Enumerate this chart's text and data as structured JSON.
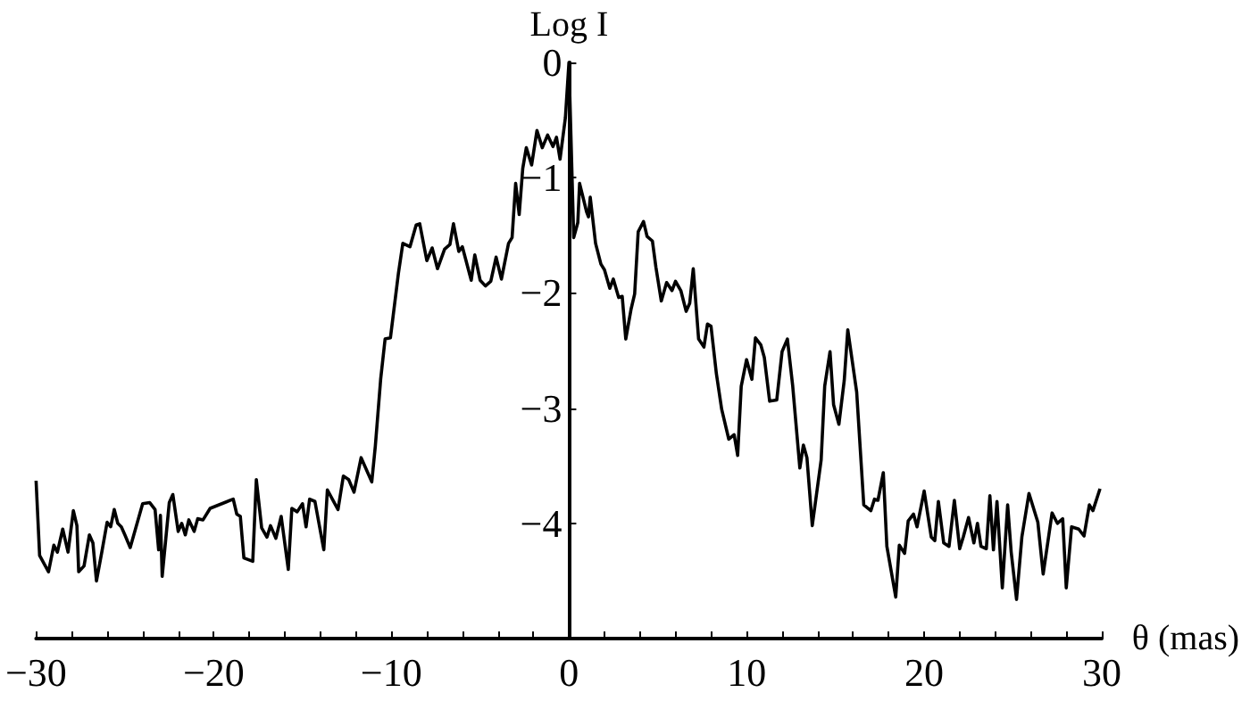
{
  "chart_data": {
    "type": "line",
    "xlabel": "θ (mas)",
    "ylabel": "Log I",
    "xlim": [
      -30,
      30
    ],
    "ylim": [
      -5,
      0
    ],
    "xticks": [
      {
        "value": -30,
        "label": "−30"
      },
      {
        "value": -28,
        "label": null
      },
      {
        "value": -26,
        "label": null
      },
      {
        "value": -24,
        "label": null
      },
      {
        "value": -22,
        "label": null
      },
      {
        "value": -20,
        "label": "−20"
      },
      {
        "value": -18,
        "label": null
      },
      {
        "value": -16,
        "label": null
      },
      {
        "value": -14,
        "label": null
      },
      {
        "value": -12,
        "label": null
      },
      {
        "value": -10,
        "label": "−10"
      },
      {
        "value": -8,
        "label": null
      },
      {
        "value": -6,
        "label": null
      },
      {
        "value": -4,
        "label": null
      },
      {
        "value": -2,
        "label": null
      },
      {
        "value": 0,
        "label": "0"
      },
      {
        "value": 2,
        "label": null
      },
      {
        "value": 4,
        "label": null
      },
      {
        "value": 6,
        "label": null
      },
      {
        "value": 8,
        "label": null
      },
      {
        "value": 10,
        "label": "10"
      },
      {
        "value": 12,
        "label": null
      },
      {
        "value": 14,
        "label": null
      },
      {
        "value": 16,
        "label": null
      },
      {
        "value": 18,
        "label": null
      },
      {
        "value": 20,
        "label": "20"
      },
      {
        "value": 22,
        "label": null
      },
      {
        "value": 24,
        "label": null
      },
      {
        "value": 26,
        "label": null
      },
      {
        "value": 28,
        "label": null
      },
      {
        "value": 30,
        "label": "30"
      }
    ],
    "yticks": [
      {
        "value": -4,
        "label": "−4"
      },
      {
        "value": -3,
        "label": "−3"
      },
      {
        "value": -2,
        "label": "−2"
      },
      {
        "value": -1,
        "label": "−1"
      },
      0
    ],
    "grid": false,
    "marker": "none",
    "line_style": "solid",
    "series": [
      {
        "color": "#000000",
        "x": [
          -30,
          -29.8,
          -29.3,
          -29.0,
          -28.8,
          -28.5,
          -28.2,
          -27.9,
          -27.7,
          -27.6,
          -27.3,
          -27.0,
          -26.8,
          -26.6,
          -26.3,
          -26.0,
          -25.8,
          -25.6,
          -25.4,
          -25.2,
          -25.0,
          -24.7,
          -24.0,
          -23.6,
          -23.3,
          -23.1,
          -23.0,
          -22.9,
          -22.5,
          -22.3,
          -22.0,
          -21.8,
          -21.6,
          -21.4,
          -21.1,
          -20.9,
          -20.6,
          -20.2,
          -18.9,
          -18.7,
          -18.5,
          -18.3,
          -17.8,
          -17.6,
          -17.3,
          -17.0,
          -16.8,
          -16.5,
          -16.2,
          -15.8,
          -15.6,
          -15.3,
          -15.0,
          -14.8,
          -14.6,
          -14.3,
          -13.8,
          -13.6,
          -13.0,
          -12.7,
          -12.4,
          -12.1,
          -11.7,
          -11.1,
          -10.9,
          -10.6,
          -10.35,
          -10.05,
          -9.6,
          -9.35,
          -8.95,
          -8.6,
          -8.4,
          -8.0,
          -7.7,
          -7.4,
          -7.0,
          -6.7,
          -6.5,
          -6.2,
          -6.0,
          -5.5,
          -5.3,
          -5.0,
          -4.7,
          -4.4,
          -4.1,
          -3.8,
          -3.4,
          -3.2,
          -3.0,
          -2.8,
          -2.6,
          -2.4,
          -2.1,
          -1.8,
          -1.5,
          -1.2,
          -0.9,
          -0.7,
          -0.5,
          -0.2,
          0,
          0.27,
          0.5,
          0.6,
          1.0,
          1.1,
          1.2,
          1.5,
          1.8,
          2.0,
          2.3,
          2.5,
          2.8,
          3.0,
          3.2,
          3.5,
          3.7,
          3.9,
          4.2,
          4.4,
          4.7,
          4.9,
          5.2,
          5.5,
          5.8,
          6.0,
          6.3,
          6.6,
          6.8,
          7.0,
          7.3,
          7.6,
          7.8,
          8.0,
          8.3,
          8.6,
          9.0,
          9.3,
          9.5,
          9.7,
          10.0,
          10.3,
          10.5,
          10.8,
          11.0,
          11.3,
          11.7,
          12.0,
          12.3,
          12.6,
          13.0,
          13.2,
          13.4,
          13.7,
          14.2,
          14.4,
          14.7,
          14.9,
          15.2,
          15.5,
          15.7,
          16.2,
          16.6,
          17.0,
          17.2,
          17.4,
          17.7,
          17.9,
          18.4,
          18.6,
          18.9,
          19.1,
          19.4,
          19.6,
          20.0,
          20.4,
          20.6,
          20.8,
          21.1,
          21.4,
          21.7,
          22.0,
          22.2,
          22.5,
          22.8,
          23.0,
          23.2,
          23.5,
          23.7,
          23.9,
          24.1,
          24.4,
          24.7,
          24.9,
          25.2,
          25.5,
          25.9,
          26.4,
          26.7,
          27.2,
          27.5,
          27.8,
          28.0,
          28.3,
          28.7,
          29.0,
          29.3,
          29.5,
          29.9
        ],
        "values": [
          -3.63,
          -4.28,
          -4.42,
          -4.19,
          -4.25,
          -4.05,
          -4.25,
          -3.89,
          -4.02,
          -4.42,
          -4.37,
          -4.1,
          -4.17,
          -4.5,
          -4.25,
          -3.99,
          -4.03,
          -3.88,
          -4.0,
          -4.03,
          -4.1,
          -4.21,
          -3.83,
          -3.82,
          -3.88,
          -4.23,
          -3.93,
          -4.46,
          -3.82,
          -3.75,
          -4.07,
          -4.0,
          -4.1,
          -3.97,
          -4.07,
          -3.96,
          -3.97,
          -3.87,
          -3.79,
          -3.92,
          -3.94,
          -4.3,
          -4.33,
          -3.62,
          -4.04,
          -4.12,
          -4.02,
          -4.13,
          -3.94,
          -4.4,
          -3.87,
          -3.9,
          -3.83,
          -4.03,
          -3.79,
          -3.81,
          -4.23,
          -3.71,
          -3.88,
          -3.59,
          -3.62,
          -3.73,
          -3.43,
          -3.64,
          -3.33,
          -2.75,
          -2.4,
          -2.39,
          -1.83,
          -1.57,
          -1.6,
          -1.41,
          -1.4,
          -1.72,
          -1.61,
          -1.79,
          -1.62,
          -1.58,
          -1.4,
          -1.64,
          -1.6,
          -1.89,
          -1.67,
          -1.89,
          -1.94,
          -1.9,
          -1.69,
          -1.88,
          -1.57,
          -1.52,
          -1.05,
          -1.32,
          -0.92,
          -0.74,
          -0.89,
          -0.59,
          -0.74,
          -0.63,
          -0.73,
          -0.65,
          -0.84,
          -0.48,
          0.0,
          -1.52,
          -1.39,
          -1.05,
          -1.3,
          -1.34,
          -1.17,
          -1.57,
          -1.75,
          -1.8,
          -1.96,
          -1.88,
          -2.04,
          -2.03,
          -2.4,
          -2.14,
          -2.01,
          -1.47,
          -1.38,
          -1.51,
          -1.55,
          -1.78,
          -2.07,
          -1.91,
          -1.98,
          -1.9,
          -1.98,
          -2.16,
          -2.09,
          -1.79,
          -2.4,
          -2.47,
          -2.27,
          -2.29,
          -2.7,
          -3.01,
          -3.27,
          -3.23,
          -3.41,
          -2.81,
          -2.58,
          -2.75,
          -2.39,
          -2.45,
          -2.56,
          -2.94,
          -2.93,
          -2.51,
          -2.4,
          -2.81,
          -3.52,
          -3.32,
          -3.43,
          -4.02,
          -3.45,
          -2.81,
          -2.51,
          -2.97,
          -3.14,
          -2.76,
          -2.32,
          -2.86,
          -3.84,
          -3.89,
          -3.79,
          -3.8,
          -3.56,
          -4.2,
          -4.64,
          -4.19,
          -4.26,
          -3.98,
          -3.92,
          -4.03,
          -3.72,
          -4.12,
          -4.15,
          -3.81,
          -4.17,
          -4.2,
          -3.8,
          -4.22,
          -4.12,
          -3.95,
          -4.17,
          -4.0,
          -4.2,
          -4.22,
          -3.76,
          -4.23,
          -3.81,
          -4.56,
          -3.84,
          -4.25,
          -4.66,
          -4.12,
          -3.74,
          -3.99,
          -4.44,
          -3.91,
          -4.0,
          -3.96,
          -4.56,
          -4.03,
          -4.05,
          -4.11,
          -3.84,
          -3.89,
          -3.7
        ]
      }
    ]
  }
}
